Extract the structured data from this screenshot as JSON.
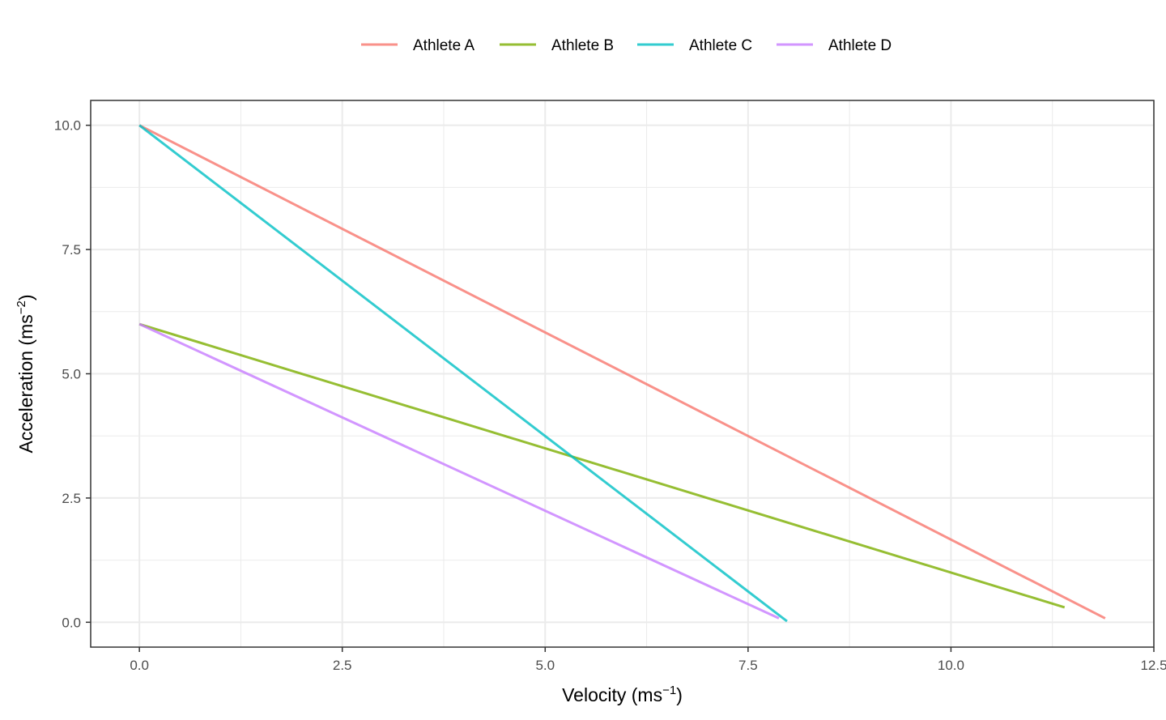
{
  "chart_data": {
    "type": "line",
    "title": "",
    "xlabel": "Velocity (ms",
    "xlabel_sup": "−1",
    "xlabel_suffix": ")",
    "ylabel": "Acceleration (ms",
    "ylabel_sup": "−2",
    "ylabel_suffix": ")",
    "xlim": [
      -0.6,
      12.5
    ],
    "ylim": [
      -0.5,
      10.5
    ],
    "x_ticks": [
      0.0,
      2.5,
      5.0,
      7.5,
      10.0,
      12.5
    ],
    "x_tick_labels": [
      "0.0",
      "2.5",
      "5.0",
      "7.5",
      "10.0",
      "12.5"
    ],
    "x_minor_ticks": [
      1.25,
      3.75,
      6.25,
      8.75,
      11.25
    ],
    "y_ticks": [
      0.0,
      2.5,
      5.0,
      7.5,
      10.0
    ],
    "y_tick_labels": [
      "0.0",
      "2.5",
      "5.0",
      "7.5",
      "10.0"
    ],
    "y_minor_ticks": [
      1.25,
      3.75,
      6.25,
      8.75
    ],
    "grid": true,
    "legend_position": "top",
    "series": [
      {
        "name": "Athlete A",
        "color": "#F8766D",
        "x": [
          0.0,
          11.9
        ],
        "y": [
          10.0,
          0.08
        ]
      },
      {
        "name": "Athlete B",
        "color": "#7CAE00",
        "x": [
          0.0,
          11.4
        ],
        "y": [
          6.0,
          0.3
        ]
      },
      {
        "name": "Athlete C",
        "color": "#00BFC4",
        "x": [
          0.0,
          7.98
        ],
        "y": [
          10.0,
          0.02
        ]
      },
      {
        "name": "Athlete D",
        "color": "#C77CFF",
        "x": [
          0.0,
          7.88
        ],
        "y": [
          6.0,
          0.08
        ]
      }
    ]
  }
}
